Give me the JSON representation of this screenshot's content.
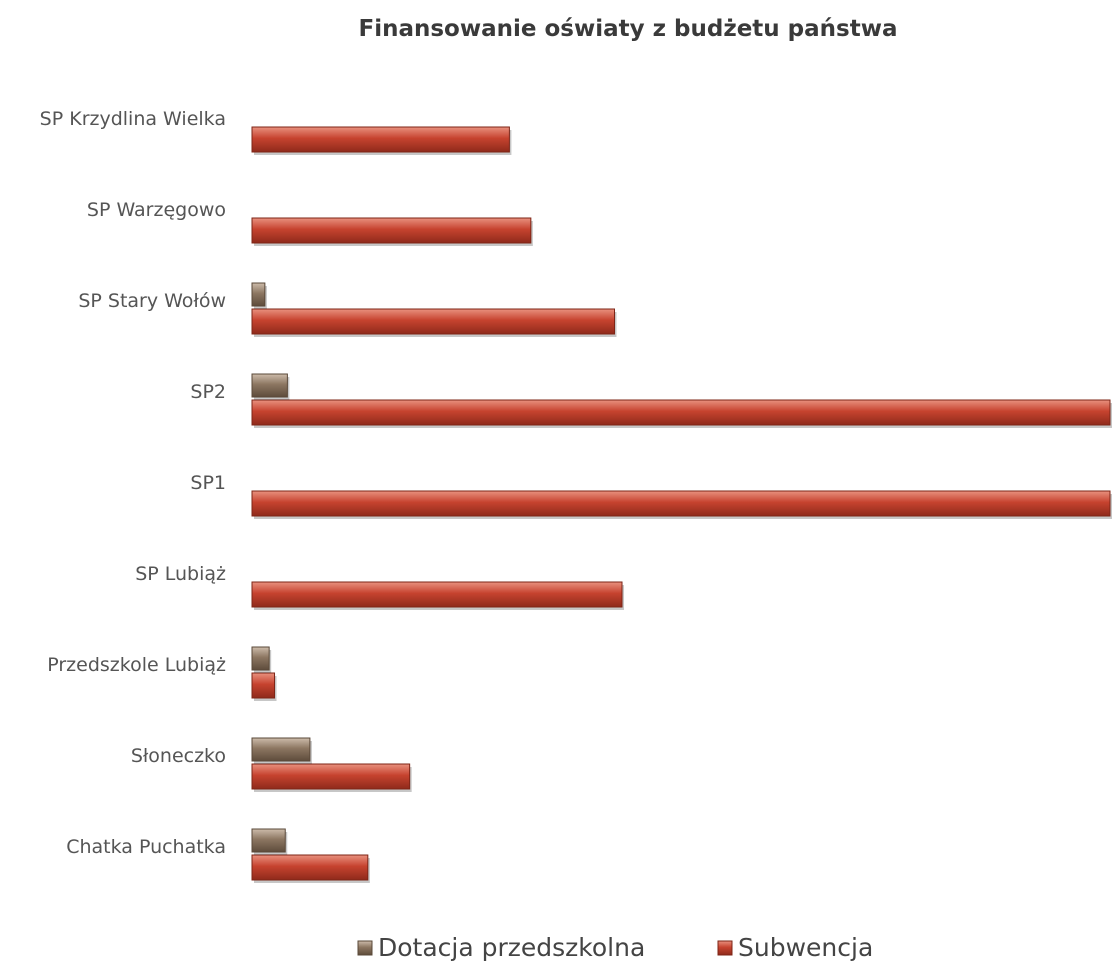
{
  "chart_data": {
    "type": "bar",
    "orientation": "horizontal",
    "title": "Finansowanie oświaty z budżetu państwa",
    "categories": [
      "SP Krzydlina Wielka",
      "SP Warzęgowo",
      "SP Stary Wołów",
      "SP2",
      "SP1",
      "SP Lubiąż",
      "Przedszkole Lubiąż",
      "Słoneczko",
      "Chatka Puchatka"
    ],
    "series": [
      {
        "name": "Dotacja przedszkolna",
        "color": "#8a7560",
        "values": [
          0,
          0,
          1.2,
          3.3,
          0,
          0,
          1.6,
          5.4,
          3.1
        ]
      },
      {
        "name": "Subwencja",
        "color": "#c0392b",
        "values": [
          24,
          26,
          33.8,
          80,
          82,
          34.5,
          2.1,
          14.7,
          10.8
        ]
      }
    ],
    "xlim": [
      0,
      80
    ],
    "grid": false,
    "legend": "bottom"
  }
}
